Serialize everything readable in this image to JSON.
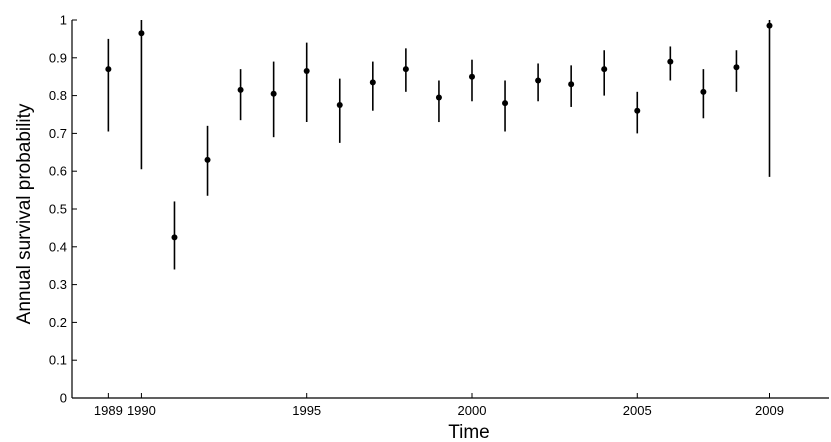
{
  "chart_data": {
    "type": "scatter",
    "title": "",
    "xlabel": "Time",
    "ylabel": "Annual survival probability",
    "xlim": [
      1987.9,
      2010.8
    ],
    "ylim": [
      0,
      1
    ],
    "yticks": [
      0,
      0.1,
      0.2,
      0.3,
      0.4,
      0.5,
      0.6,
      0.7,
      0.8,
      0.9,
      1
    ],
    "ytick_labels": [
      "0",
      "0.1",
      "0.2",
      "0.3",
      "0.4",
      "0.5",
      "0.6",
      "0.7",
      "0.8",
      "0.9",
      "1"
    ],
    "xticks": [
      1989,
      1990,
      1995,
      2000,
      2005,
      2009
    ],
    "xtick_labels": [
      "1989",
      "1990",
      "1995",
      "2000",
      "2005",
      "2009"
    ],
    "grid": false,
    "legend": "none",
    "marker_color": "#000000",
    "series": [
      {
        "x": [
          1989,
          1990,
          1991,
          1992,
          1993,
          1994,
          1995,
          1996,
          1997,
          1998,
          1999,
          2000,
          2001,
          2002,
          2003,
          2004,
          2005,
          2006,
          2007,
          2008,
          2009
        ],
        "y": [
          0.87,
          0.965,
          0.425,
          0.63,
          0.815,
          0.805,
          0.865,
          0.775,
          0.835,
          0.87,
          0.795,
          0.85,
          0.78,
          0.84,
          0.83,
          0.87,
          0.76,
          0.89,
          0.81,
          0.875,
          0.985
        ],
        "y_lower": [
          0.705,
          0.605,
          0.34,
          0.535,
          0.735,
          0.69,
          0.73,
          0.675,
          0.76,
          0.81,
          0.73,
          0.785,
          0.705,
          0.785,
          0.77,
          0.8,
          0.7,
          0.84,
          0.74,
          0.81,
          0.585
        ],
        "y_upper": [
          0.95,
          1.0,
          0.52,
          0.72,
          0.87,
          0.89,
          0.94,
          0.845,
          0.89,
          0.925,
          0.84,
          0.895,
          0.84,
          0.885,
          0.88,
          0.92,
          0.81,
          0.93,
          0.87,
          0.92,
          1.0
        ]
      }
    ]
  }
}
